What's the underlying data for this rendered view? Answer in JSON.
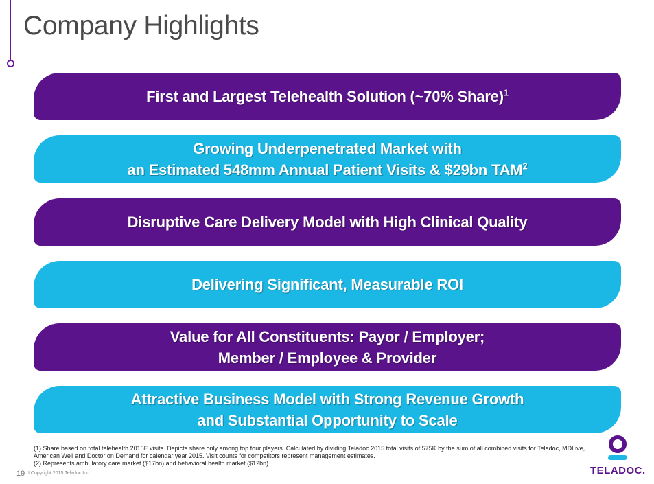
{
  "slide": {
    "title": "Company Highlights",
    "banners": [
      {
        "text": "First and Largest Telehealth Solution (~70% Share)",
        "sup": "1"
      },
      {
        "line1": "Growing Underpenetrated Market with",
        "line2": "an Estimated 548mm Annual Patient Visits & $29bn TAM",
        "sup": "2"
      },
      {
        "text": "Disruptive Care Delivery Model with High Clinical Quality"
      },
      {
        "text": "Delivering Significant, Measurable ROI"
      },
      {
        "line1": "Value for All Constituents: Payor / Employer;",
        "line2": "Member / Employee & Provider"
      },
      {
        "line1": "Attractive Business Model with Strong Revenue Growth",
        "line2": "and Substantial Opportunity to Scale"
      }
    ],
    "footnotes": [
      "(1) Share based on total telehealth 2015E visits. Depicts share only among top four players. Calculated by dividing Teladoc 2015 total visits of 575K by the sum of all combined visits for Teladoc, MDLive, American Well and Doctor on Demand for calendar year 2015. Visit counts for competitors represent management estimates.",
      "(2) Represents  ambulatory care market ($17bn) and behavioral health market ($12bn)."
    ],
    "page_number": "19",
    "copyright": "I  Copyright 2015 Teladoc Inc.",
    "logo_text": "TELADOC."
  },
  "colors": {
    "purple": "#5b138c",
    "cyan": "#1bb8e6",
    "accent": "#6a1b9a"
  }
}
